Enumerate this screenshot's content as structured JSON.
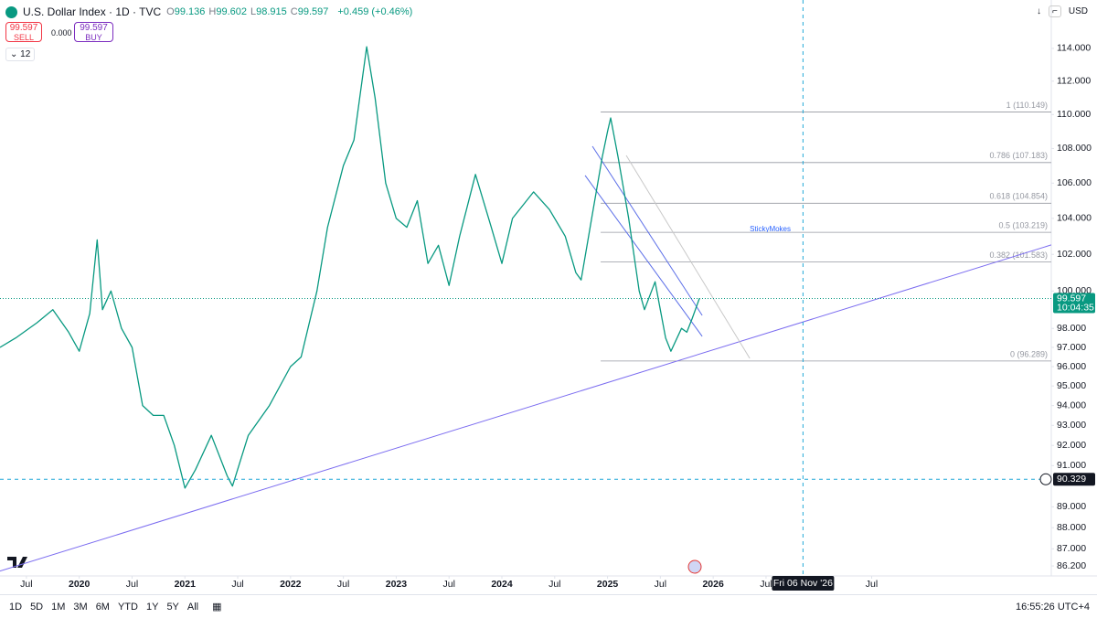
{
  "ui": {
    "symbol": "U.S. Dollar Index · 1D · TVC",
    "ohlc": [
      {
        "k": "O",
        "v": "99.136"
      },
      {
        "k": "H",
        "v": "99.602"
      },
      {
        "k": "L",
        "v": "98.915"
      },
      {
        "k": "C",
        "v": "99.597"
      }
    ],
    "change": "+0.459 (+0.46%)",
    "sell_price": "99.597",
    "sell": "SELL",
    "spread": "0.000",
    "buy_price": "99.597",
    "buy": "BUY",
    "indicators": "12",
    "currency": "USD",
    "ranges": [
      "1D",
      "5D",
      "1M",
      "3M",
      "6M",
      "YTD",
      "1Y",
      "5Y",
      "All"
    ],
    "clock": "16:55:26 UTC+4"
  },
  "chart_data": {
    "type": "line",
    "series": [
      {
        "name": "DXY",
        "color": "#089981",
        "x": [
          2019.25,
          2019.4,
          2019.6,
          2019.75,
          2019.9,
          2020.0,
          2020.1,
          2020.17,
          2020.22,
          2020.3,
          2020.4,
          2020.5,
          2020.6,
          2020.7,
          2020.8,
          2020.9,
          2021.0,
          2021.1,
          2021.25,
          2021.4,
          2021.45,
          2021.6,
          2021.8,
          2022.0,
          2022.1,
          2022.25,
          2022.35,
          2022.5,
          2022.6,
          2022.72,
          2022.8,
          2022.9,
          2023.0,
          2023.1,
          2023.2,
          2023.3,
          2023.4,
          2023.5,
          2023.6,
          2023.75,
          2023.9,
          2024.0,
          2024.1,
          2024.3,
          2024.45,
          2024.6,
          2024.7,
          2024.75,
          2024.85,
          2024.95,
          2025.0,
          2025.03,
          2025.1,
          2025.2,
          2025.3,
          2025.35,
          2025.45,
          2025.55,
          2025.6,
          2025.7,
          2025.75,
          2025.8,
          2025.87
        ],
        "values": [
          97.0,
          97.5,
          98.3,
          99.0,
          97.8,
          96.8,
          98.8,
          102.8,
          99.0,
          100.0,
          98.0,
          97.0,
          94.0,
          93.5,
          93.5,
          92.0,
          89.9,
          90.8,
          92.5,
          90.5,
          90.0,
          92.5,
          94.0,
          96.0,
          96.5,
          100.0,
          103.5,
          107.0,
          108.5,
          114.1,
          111.0,
          106.0,
          104.0,
          103.5,
          105.0,
          101.5,
          102.5,
          100.3,
          103.0,
          106.5,
          103.5,
          101.5,
          104.0,
          105.5,
          104.5,
          103.0,
          101.0,
          100.6,
          104.0,
          107.5,
          109.0,
          109.8,
          107.5,
          104.0,
          100.0,
          99.0,
          100.5,
          97.5,
          96.8,
          98.0,
          97.8,
          98.5,
          99.6
        ]
      }
    ],
    "xlim": [
      2019.25,
      2029.2
    ],
    "xticks": [
      {
        "value": 2019.5,
        "label": "Jul"
      },
      {
        "value": 2020,
        "label": "2020"
      },
      {
        "value": 2020.5,
        "label": "Jul"
      },
      {
        "value": 2021,
        "label": "2021"
      },
      {
        "value": 2021.5,
        "label": "Jul"
      },
      {
        "value": 2022,
        "label": "2022"
      },
      {
        "value": 2022.5,
        "label": "Jul"
      },
      {
        "value": 2023,
        "label": "2023"
      },
      {
        "value": 2023.5,
        "label": "Jul"
      },
      {
        "value": 2024,
        "label": "2024"
      },
      {
        "value": 2024.5,
        "label": "Jul"
      },
      {
        "value": 2025,
        "label": "2025"
      },
      {
        "value": 2025.5,
        "label": "Jul"
      },
      {
        "value": 2026,
        "label": "2026"
      },
      {
        "value": 2026.5,
        "label": "Jul"
      },
      {
        "value": 2027.5,
        "label": "Jul"
      }
    ],
    "ylim": [
      85.82,
      117.02
    ],
    "log": true,
    "grid": false,
    "yticks": [
      {
        "value": 114,
        "label": "114.000"
      },
      {
        "value": 112,
        "label": "112.000"
      },
      {
        "value": 110,
        "label": "110.000"
      },
      {
        "value": 108,
        "label": "108.000"
      },
      {
        "value": 106,
        "label": "106.000"
      },
      {
        "value": 104,
        "label": "104.000"
      },
      {
        "value": 102,
        "label": "102.000"
      },
      {
        "value": 100,
        "label": "100.000"
      },
      {
        "value": 98,
        "label": "98.000"
      },
      {
        "value": 97,
        "label": "97.000"
      },
      {
        "value": 96,
        "label": "96.000"
      },
      {
        "value": 95,
        "label": "95.000"
      },
      {
        "value": 94,
        "label": "94.000"
      },
      {
        "value": 93,
        "label": "93.000"
      },
      {
        "value": 92,
        "label": "92.000"
      },
      {
        "value": 91,
        "label": "91.000"
      },
      {
        "value": 89,
        "label": "89.000"
      },
      {
        "value": 88,
        "label": "88.000"
      },
      {
        "value": 87,
        "label": "87.000"
      },
      {
        "value": 86.2,
        "label": "86.200"
      }
    ],
    "last_price": 99.597,
    "countdown": "10:04:35",
    "crosshair": {
      "x": {
        "value": 2026.85,
        "label": "Fri 06 Nov '26"
      },
      "y": 90.329
    },
    "fib_x": [
      2024.935,
      2029.2
    ],
    "fib_levels": [
      {
        "value": 110.149,
        "label": "1 (110.149)"
      },
      {
        "value": 107.183,
        "label": "0.786 (107.183)"
      },
      {
        "value": 104.854,
        "label": "0.618 (104.854)"
      },
      {
        "value": 103.219,
        "label": "0.5 (103.219)"
      },
      {
        "value": 101.583,
        "label": "0.382 (101.583)"
      },
      {
        "value": 96.289,
        "label": "0 (96.289)"
      }
    ],
    "trendlines": [
      {
        "x": [
          2019.25,
          2029.2
        ],
        "y": [
          85.96,
          102.52
        ],
        "color": "#7b6cf0"
      },
      {
        "x": [
          2024.857,
          2025.896
        ],
        "y": [
          108.13,
          98.69
        ],
        "color": "#5b6ee8"
      },
      {
        "x": [
          2024.788,
          2025.896
        ],
        "y": [
          106.44,
          97.58
        ],
        "color": "#5b6ee8"
      },
      {
        "x": [
          2025.177,
          2026.346
        ],
        "y": [
          107.6,
          96.43
        ],
        "color": "#c8c8c8"
      }
    ],
    "annotation": {
      "text": "StickyMokes",
      "x": 2026.54,
      "y": 103.38
    }
  }
}
